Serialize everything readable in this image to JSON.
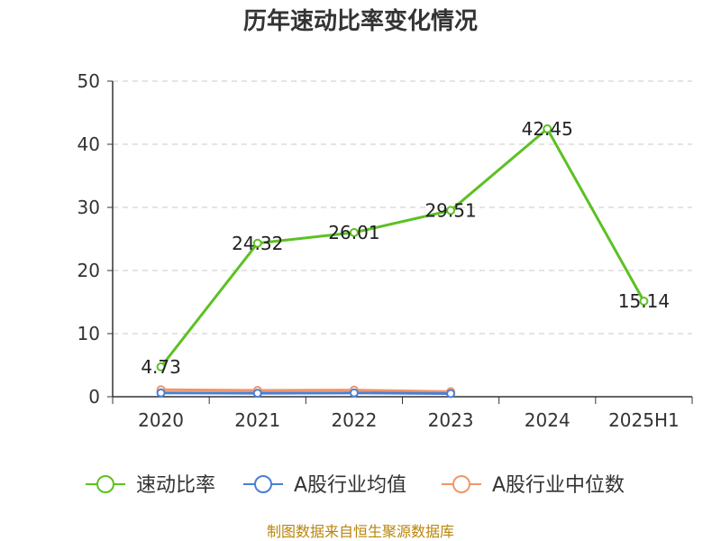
{
  "chart_data": {
    "type": "line",
    "title": "历年速动比率变化情况",
    "categories": [
      "2020",
      "2021",
      "2022",
      "2023",
      "2024",
      "2025H1"
    ],
    "ylim": [
      0,
      50
    ],
    "yticks": [
      0,
      10,
      20,
      30,
      40,
      50
    ],
    "grid": "horizontal-dashed",
    "legend_position": "bottom",
    "series": [
      {
        "name": "速动比率",
        "color": "#5cc122",
        "values": [
          4.73,
          24.32,
          26.01,
          29.51,
          42.45,
          15.14
        ],
        "labels": [
          "4.73",
          "24.32",
          "26.01",
          "29.51",
          "42.45",
          "15.14"
        ]
      },
      {
        "name": "A股行业均值",
        "color": "#4a7fd4",
        "values": [
          0.6,
          0.55,
          0.6,
          0.5,
          null,
          null
        ]
      },
      {
        "name": "A股行业中位数",
        "color": "#f0956a",
        "values": [
          1.1,
          1.0,
          1.05,
          0.8,
          null,
          null
        ]
      }
    ]
  },
  "source": "制图数据来自恒生聚源数据库"
}
